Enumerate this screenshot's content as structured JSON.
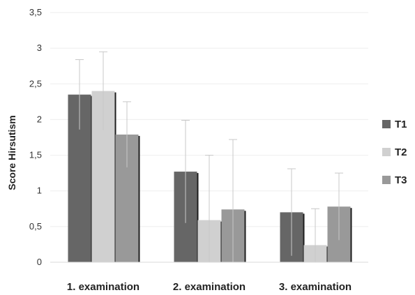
{
  "chart_data": {
    "type": "bar",
    "categories": [
      "1. examination",
      "2. examination",
      "3. examination"
    ],
    "series": [
      {
        "name": "T1",
        "values": [
          2.35,
          1.27,
          0.7
        ],
        "errors": [
          0.49,
          0.72,
          0.61
        ],
        "color": "#666666"
      },
      {
        "name": "T2",
        "values": [
          2.4,
          0.59,
          0.24
        ],
        "errors": [
          0.55,
          0.91,
          0.51
        ],
        "color": "#d0d0d0"
      },
      {
        "name": "T3",
        "values": [
          1.79,
          0.74,
          0.78
        ],
        "errors": [
          0.46,
          0.98,
          0.47
        ],
        "color": "#999999"
      }
    ],
    "title": "",
    "xlabel": "",
    "ylabel": "Score Hirsutism",
    "ylim": [
      0,
      3.5
    ],
    "yticks": [
      "0",
      "0,5",
      "1",
      "1,5",
      "2",
      "2,5",
      "3",
      "3,5"
    ],
    "grid": true,
    "legend": "right"
  }
}
